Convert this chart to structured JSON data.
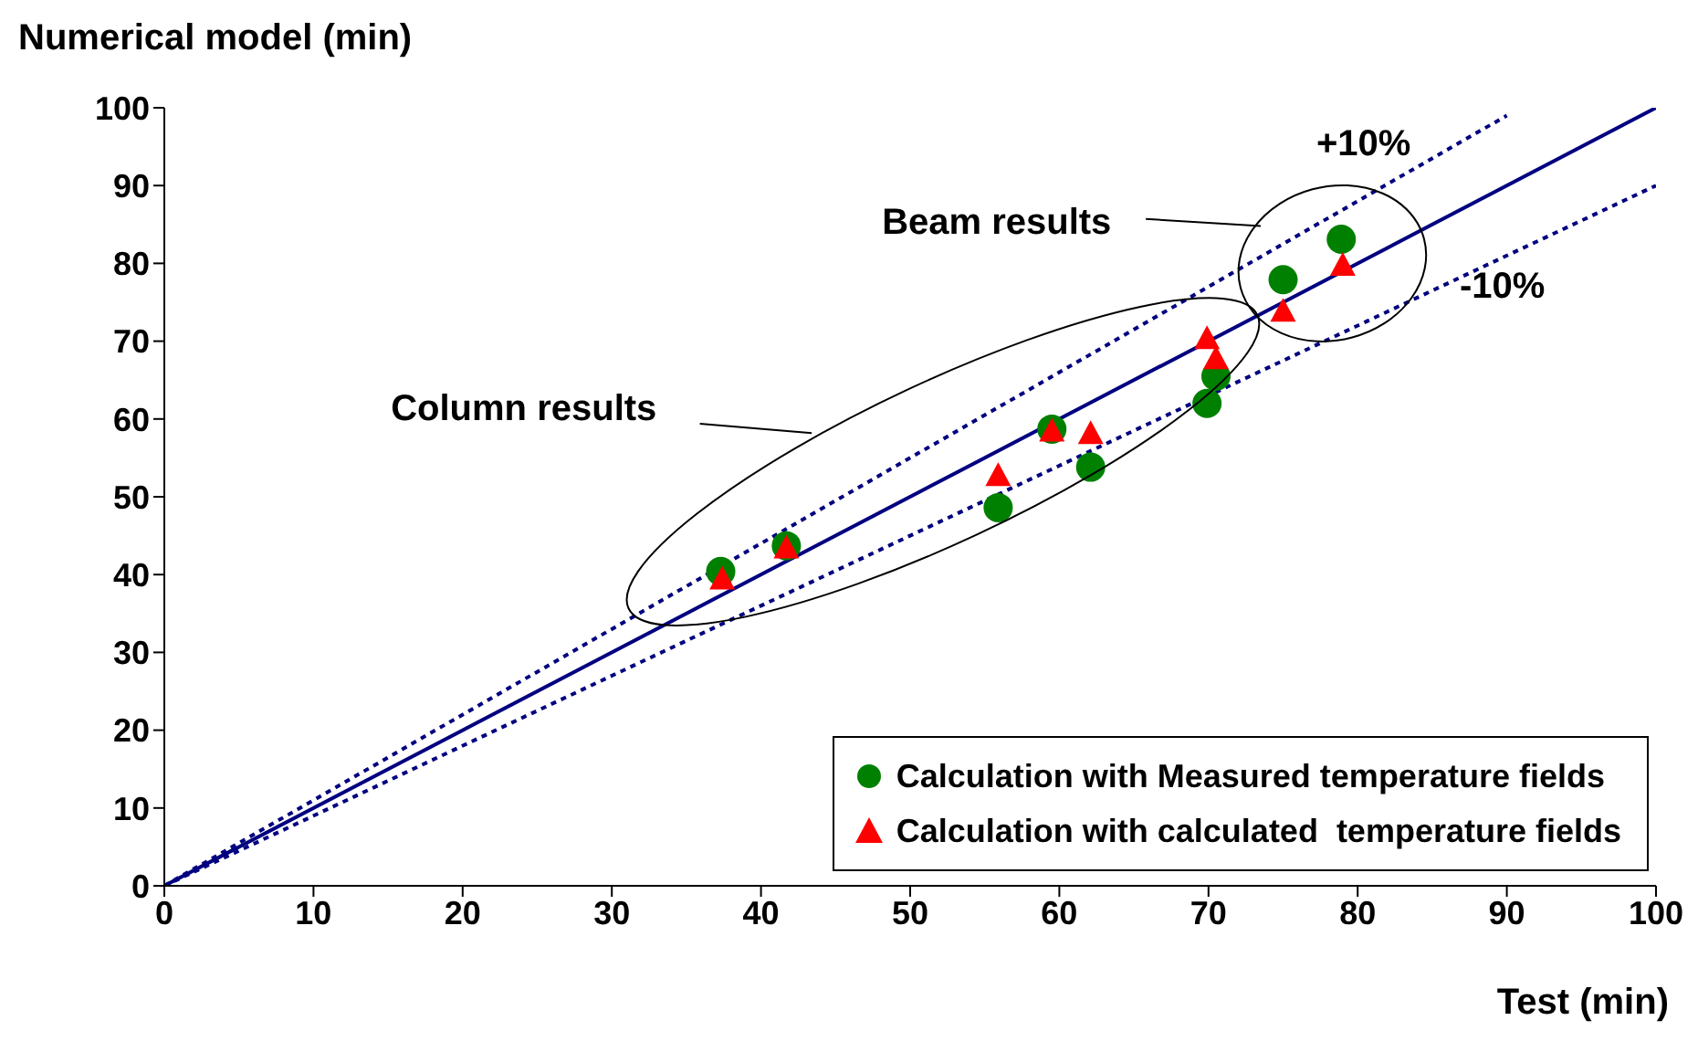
{
  "chart_data": {
    "type": "scatter",
    "xlabel": "Test (min)",
    "ylabel": "Numerical model (min)",
    "xlim": [
      0,
      100
    ],
    "ylim": [
      0,
      100
    ],
    "xticks": [
      0,
      10,
      20,
      30,
      40,
      50,
      60,
      70,
      80,
      90,
      100
    ],
    "yticks": [
      0,
      10,
      20,
      30,
      40,
      50,
      60,
      70,
      80,
      90,
      100
    ],
    "legend": "bottom right",
    "series": [
      {
        "name": "Calculation with Measured temperature fields",
        "color": "#008000",
        "marker": "circle",
        "x": [
          37.3,
          41.7,
          55.9,
          59.5,
          62.1,
          69.9,
          70.5,
          75,
          78.9
        ],
        "values": [
          40.4,
          43.7,
          48.6,
          58.7,
          53.8,
          62,
          65.5,
          77.9,
          83.1
        ]
      },
      {
        "name": "Calculation with calculated  temperature fields",
        "color": "#ff0000",
        "marker": "triangle",
        "x": [
          37.4,
          41.7,
          55.9,
          59.5,
          62.1,
          69.9,
          70.5,
          75,
          79
        ],
        "values": [
          39.5,
          43.5,
          52.8,
          58.5,
          58.2,
          70.4,
          67.8,
          73.9,
          79.8
        ]
      },
      {
        "type": "line",
        "color": "#000080",
        "line_style": "solid",
        "marker": "none",
        "x": [
          0,
          100
        ],
        "values": [
          0,
          100
        ]
      },
      {
        "type": "line",
        "color": "#000080",
        "line_style": "dotted",
        "marker": "none",
        "x": [
          0,
          90
        ],
        "values": [
          0,
          99
        ]
      },
      {
        "type": "line",
        "color": "#000080",
        "line_style": "dotted",
        "marker": "none",
        "x": [
          0,
          100
        ],
        "values": [
          0,
          90
        ]
      }
    ],
    "annotations": [
      "+10%",
      "-10%",
      "Beam results",
      "Column results"
    ]
  }
}
